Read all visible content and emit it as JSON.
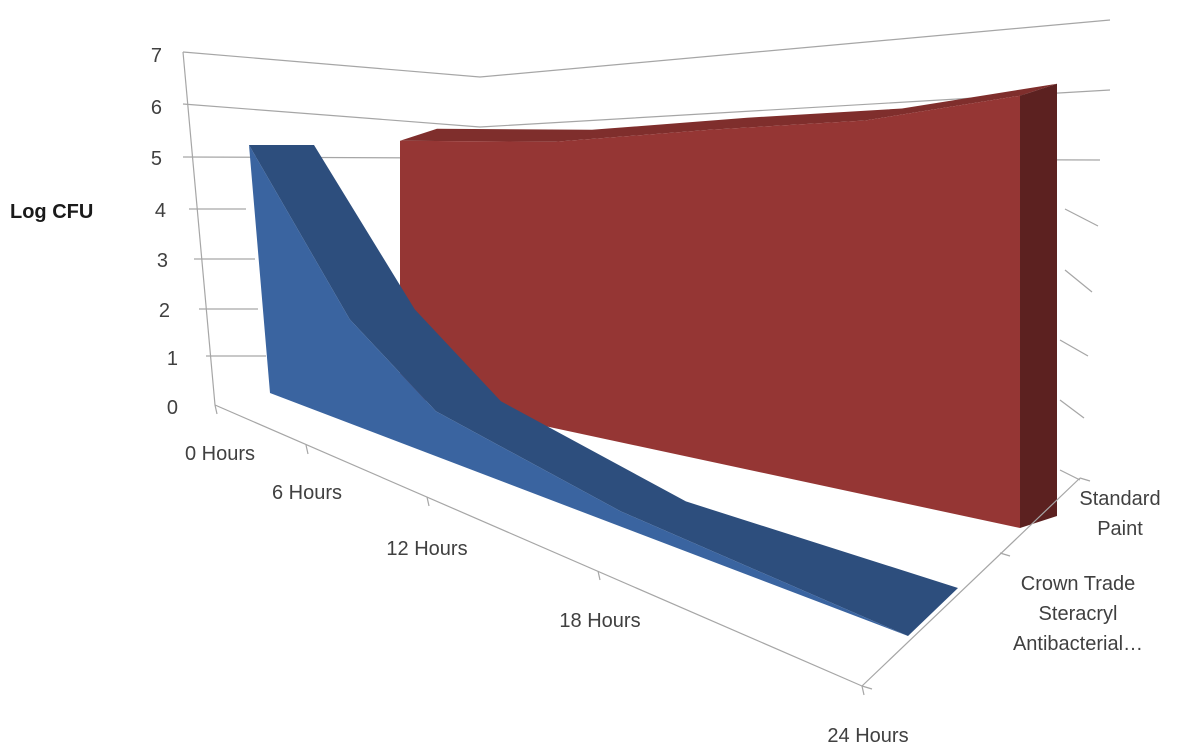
{
  "chart_data": {
    "type": "area",
    "variant": "3d",
    "title": "",
    "ylabel": "Log CFU",
    "xlabel": "",
    "ylim": [
      0,
      7
    ],
    "yticks": [
      "0",
      "1",
      "2",
      "3",
      "4",
      "5",
      "6",
      "7"
    ],
    "categories": [
      "0 Hours",
      "6 Hours",
      "12 Hours",
      "18 Hours",
      "24 Hours"
    ],
    "depth_labels": [
      [
        "Crown Trade",
        "Steracryl",
        "Antibacterial…"
      ],
      [
        "Standard",
        "Paint"
      ]
    ],
    "series": [
      {
        "values": [
          5.2,
          2.1,
          0.9,
          0.3,
          0.0
        ],
        "color": "#3a64a0"
      },
      {
        "values": [
          5.2,
          5.4,
          5.8,
          6.1,
          6.6
        ],
        "color": "#953634"
      }
    ],
    "grid": true,
    "legend": "none"
  }
}
